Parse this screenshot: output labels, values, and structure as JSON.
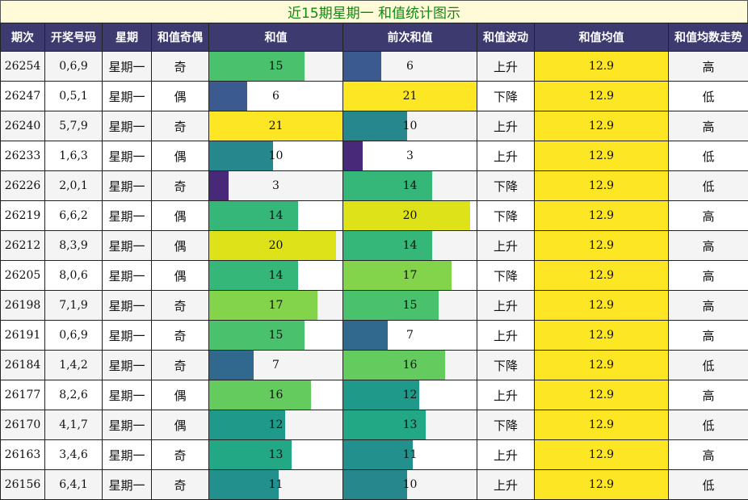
{
  "title": "近15期星期一 和值统计图示",
  "headers": [
    "期次",
    "开奖号码",
    "星期",
    "和值奇偶",
    "和值",
    "前次和值",
    "和值波动",
    "和值均值",
    "和值均数走势"
  ],
  "scale_max": 21,
  "rows": [
    {
      "issue": "26254",
      "numbers": "0,6,9",
      "weekday": "星期一",
      "parity": "奇",
      "sum": 15,
      "prev_sum": 6,
      "trend": "上升",
      "avg": "12.9",
      "avg_trend": "高"
    },
    {
      "issue": "26247",
      "numbers": "0,5,1",
      "weekday": "星期一",
      "parity": "偶",
      "sum": 6,
      "prev_sum": 21,
      "trend": "下降",
      "avg": "12.9",
      "avg_trend": "低"
    },
    {
      "issue": "26240",
      "numbers": "5,7,9",
      "weekday": "星期一",
      "parity": "奇",
      "sum": 21,
      "prev_sum": 10,
      "trend": "上升",
      "avg": "12.9",
      "avg_trend": "高"
    },
    {
      "issue": "26233",
      "numbers": "1,6,3",
      "weekday": "星期一",
      "parity": "偶",
      "sum": 10,
      "prev_sum": 3,
      "trend": "上升",
      "avg": "12.9",
      "avg_trend": "低"
    },
    {
      "issue": "26226",
      "numbers": "2,0,1",
      "weekday": "星期一",
      "parity": "奇",
      "sum": 3,
      "prev_sum": 14,
      "trend": "下降",
      "avg": "12.9",
      "avg_trend": "低"
    },
    {
      "issue": "26219",
      "numbers": "6,6,2",
      "weekday": "星期一",
      "parity": "偶",
      "sum": 14,
      "prev_sum": 20,
      "trend": "下降",
      "avg": "12.9",
      "avg_trend": "高"
    },
    {
      "issue": "26212",
      "numbers": "8,3,9",
      "weekday": "星期一",
      "parity": "偶",
      "sum": 20,
      "prev_sum": 14,
      "trend": "上升",
      "avg": "12.9",
      "avg_trend": "高"
    },
    {
      "issue": "26205",
      "numbers": "8,0,6",
      "weekday": "星期一",
      "parity": "偶",
      "sum": 14,
      "prev_sum": 17,
      "trend": "下降",
      "avg": "12.9",
      "avg_trend": "高"
    },
    {
      "issue": "26198",
      "numbers": "7,1,9",
      "weekday": "星期一",
      "parity": "奇",
      "sum": 17,
      "prev_sum": 15,
      "trend": "上升",
      "avg": "12.9",
      "avg_trend": "高"
    },
    {
      "issue": "26191",
      "numbers": "0,6,9",
      "weekday": "星期一",
      "parity": "奇",
      "sum": 15,
      "prev_sum": 7,
      "trend": "上升",
      "avg": "12.9",
      "avg_trend": "高"
    },
    {
      "issue": "26184",
      "numbers": "1,4,2",
      "weekday": "星期一",
      "parity": "奇",
      "sum": 7,
      "prev_sum": 16,
      "trend": "下降",
      "avg": "12.9",
      "avg_trend": "低"
    },
    {
      "issue": "26177",
      "numbers": "8,2,6",
      "weekday": "星期一",
      "parity": "偶",
      "sum": 16,
      "prev_sum": 12,
      "trend": "上升",
      "avg": "12.9",
      "avg_trend": "高"
    },
    {
      "issue": "26170",
      "numbers": "4,1,7",
      "weekday": "星期一",
      "parity": "偶",
      "sum": 12,
      "prev_sum": 13,
      "trend": "下降",
      "avg": "12.9",
      "avg_trend": "低"
    },
    {
      "issue": "26163",
      "numbers": "3,4,6",
      "weekday": "星期一",
      "parity": "奇",
      "sum": 13,
      "prev_sum": 11,
      "trend": "上升",
      "avg": "12.9",
      "avg_trend": "高"
    },
    {
      "issue": "26156",
      "numbers": "6,4,1",
      "weekday": "星期一",
      "parity": "奇",
      "sum": 11,
      "prev_sum": 10,
      "trend": "上升",
      "avg": "12.9",
      "avg_trend": "低"
    }
  ],
  "colors": {
    "header_bg": "#3c3a6e",
    "title_bg": "#fffbd8",
    "title_text": "#118811",
    "avg_bg": "#fde725",
    "ramp": {
      "3": "#482878",
      "6": "#3b5a8f",
      "7": "#31688e",
      "10": "#26888c",
      "11": "#22908c",
      "12": "#1f9a8a",
      "13": "#22a884",
      "14": "#35b779",
      "15": "#4ac16d",
      "16": "#64cb5f",
      "17": "#84d44b",
      "20": "#dde318",
      "21": "#fde725"
    }
  }
}
